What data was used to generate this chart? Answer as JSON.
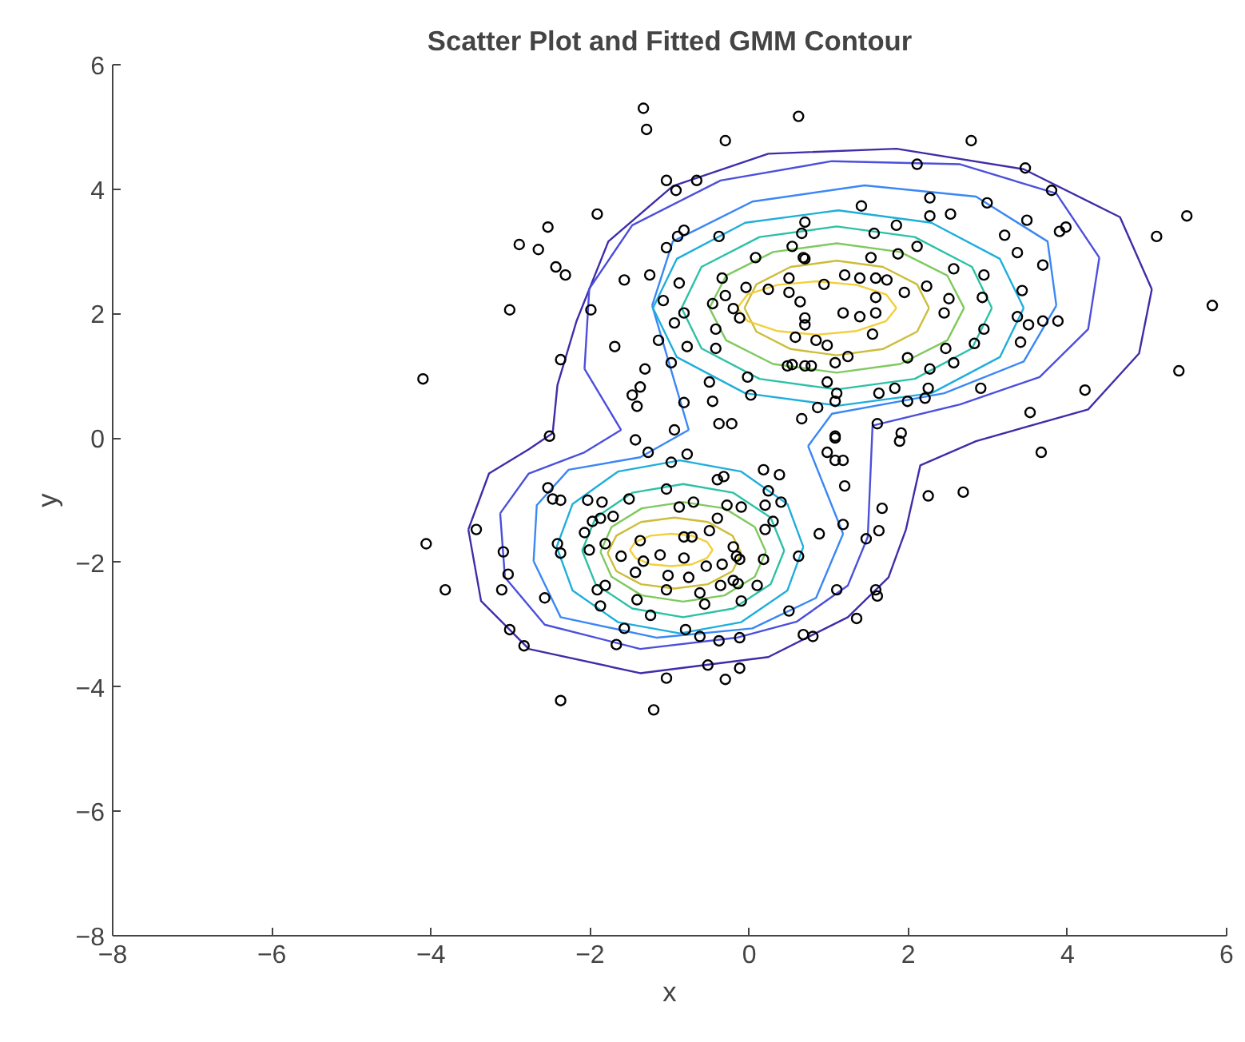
{
  "chart_data": {
    "type": "scatter",
    "title": "Scatter Plot and Fitted GMM Contour",
    "xlabel": "x",
    "ylabel": "y",
    "xlim": [
      -8,
      6
    ],
    "ylim": [
      -8,
      6
    ],
    "xticks": [
      -8,
      -6,
      -4,
      -2,
      0,
      2,
      4,
      6
    ],
    "yticks": [
      -8,
      -6,
      -4,
      -2,
      0,
      2,
      4,
      6
    ],
    "grid": false,
    "series": [
      {
        "type": "line",
        "color": "#3e2da8",
        "x": [
          -2.47,
          -2.41,
          -2.17,
          -1.77,
          -0.96,
          0.24,
          1.85,
          3.45,
          4.66,
          5.06
        ],
        "values": [
          0.08,
          0.85,
          1.88,
          3.16,
          4.05,
          4.57,
          4.65,
          4.32,
          3.55,
          2.39
        ]
      },
      {
        "type": "line",
        "color": "#3e2da8",
        "x": [
          -3.53,
          -3.37,
          -2.77,
          -1.37,
          0.24,
          1.24,
          1.75,
          1.97,
          2.15,
          2.85,
          4.26,
          4.9,
          5.06
        ],
        "values": [
          -1.47,
          -2.62,
          -3.39,
          -3.78,
          -3.52,
          -2.88,
          -2.24,
          -1.47,
          -0.44,
          -0.05,
          0.46,
          1.36,
          2.39
        ]
      },
      {
        "type": "line",
        "color": "#3e2da8",
        "x": [
          -3.53,
          -3.27,
          -2.77,
          -2.47
        ],
        "values": [
          -1.47,
          -0.57,
          -0.18,
          0.08
        ]
      },
      {
        "type": "line",
        "color": "#4b4fdc",
        "x": [
          -2.07,
          -1.61
        ],
        "values": [
          1.11,
          0.13
        ]
      },
      {
        "type": "line",
        "color": "#4b4fdc",
        "x": [
          -2.07,
          -2.01,
          -1.47,
          -0.36,
          1.04,
          2.65,
          3.86,
          4.4
        ],
        "values": [
          1.11,
          2.4,
          3.42,
          4.14,
          4.45,
          4.4,
          3.93,
          2.9
        ]
      },
      {
        "type": "line",
        "color": "#4b4fdc",
        "x": [
          -3.13,
          -3.07,
          -2.57,
          -1.37,
          -0.16,
          0.6,
          1.24,
          1.49,
          1.55,
          2.65,
          3.65,
          4.26,
          4.4
        ],
        "values": [
          -1.21,
          -2.24,
          -3.0,
          -3.39,
          -3.21,
          -2.95,
          -2.37,
          -1.59,
          0.2,
          0.54,
          0.98,
          1.75,
          2.9
        ]
      },
      {
        "type": "line",
        "color": "#4b4fdc",
        "x": [
          -3.13,
          -2.77,
          -2.07,
          -1.61
        ],
        "values": [
          -1.21,
          -0.57,
          -0.23,
          0.13
        ]
      },
      {
        "type": "line",
        "color": "#3a87f5",
        "x": [
          -1.22,
          -0.76
        ],
        "values": [
          2.13,
          0.13
        ]
      },
      {
        "type": "line",
        "color": "#3a87f5",
        "x": [
          -1.22,
          -0.96,
          0.04,
          1.45,
          2.85,
          3.75,
          3.86
        ],
        "values": [
          2.13,
          3.16,
          3.8,
          4.06,
          3.88,
          3.16,
          2.13
        ]
      },
      {
        "type": "line",
        "color": "#3a87f5",
        "x": [
          0.74,
          1.04,
          2.45,
          3.45,
          3.86
        ],
        "values": [
          -0.13,
          0.39,
          0.72,
          1.23,
          2.13
        ]
      },
      {
        "type": "line",
        "color": "#3a87f5",
        "x": [
          0.74,
          1.18
        ],
        "values": [
          -0.13,
          -1.54
        ]
      },
      {
        "type": "line",
        "color": "#3a87f5",
        "x": [
          -2.71,
          -2.37,
          -1.16,
          0.04,
          0.84,
          1.18
        ],
        "values": [
          -1.98,
          -2.88,
          -3.21,
          -3.06,
          -2.57,
          -1.54
        ]
      },
      {
        "type": "line",
        "color": "#3a87f5",
        "x": [
          -2.71,
          -2.67,
          -2.27,
          -1.37,
          -0.76
        ],
        "values": [
          -1.98,
          -1.08,
          -0.51,
          -0.31,
          0.13
        ]
      },
      {
        "type": "line",
        "color": "#1eaedc",
        "x": [
          -1.21,
          -0.91,
          -0.05,
          1.12,
          2.29,
          3.15,
          3.45
        ],
        "values": [
          2.09,
          2.88,
          3.46,
          3.66,
          3.46,
          2.88,
          2.09
        ]
      },
      {
        "type": "line",
        "color": "#1eaedc",
        "x": [
          -1.21,
          -0.91,
          -0.05,
          1.12,
          2.29,
          3.15,
          3.45
        ],
        "values": [
          2.09,
          1.3,
          0.72,
          0.52,
          0.72,
          1.3,
          2.09
        ]
      },
      {
        "type": "line",
        "color": "#2cc0a6",
        "x": [
          -0.85,
          -0.6,
          0.13,
          1.1,
          2.08,
          2.8,
          3.05
        ],
        "values": [
          2.09,
          2.75,
          3.23,
          3.4,
          3.23,
          2.75,
          2.09
        ]
      },
      {
        "type": "line",
        "color": "#2cc0a6",
        "x": [
          -0.85,
          -0.6,
          0.13,
          1.1,
          2.08,
          2.8,
          3.05
        ],
        "values": [
          2.09,
          1.44,
          0.95,
          0.78,
          0.95,
          1.44,
          2.09
        ]
      },
      {
        "type": "line",
        "color": "#7fc95d",
        "x": [
          -0.5,
          -0.29,
          0.3,
          1.1,
          1.9,
          2.49,
          2.7
        ],
        "values": [
          2.09,
          2.61,
          2.99,
          3.13,
          2.99,
          2.61,
          2.09
        ]
      },
      {
        "type": "line",
        "color": "#7fc95d",
        "x": [
          -0.5,
          -0.29,
          0.3,
          1.1,
          1.9,
          2.49,
          2.7
        ],
        "values": [
          2.09,
          1.57,
          1.19,
          1.05,
          1.19,
          1.57,
          2.09
        ]
      },
      {
        "type": "line",
        "color": "#cdbd3a",
        "x": [
          -0.06,
          0.09,
          0.52,
          1.1,
          1.68,
          2.11,
          2.26
        ],
        "values": [
          2.09,
          2.47,
          2.75,
          2.85,
          2.75,
          2.47,
          2.09
        ]
      },
      {
        "type": "line",
        "color": "#cdbd3a",
        "x": [
          -0.06,
          0.09,
          0.52,
          1.1,
          1.68,
          2.11,
          2.26
        ],
        "values": [
          2.09,
          1.71,
          1.43,
          1.33,
          1.43,
          1.71,
          2.09
        ]
      },
      {
        "type": "line",
        "color": "#f2cf3b",
        "x": [
          -0.15,
          -0.02,
          0.35,
          0.85,
          1.35,
          1.72,
          1.85
        ],
        "values": [
          2.09,
          2.31,
          2.46,
          2.52,
          2.46,
          2.31,
          2.09
        ]
      },
      {
        "type": "line",
        "color": "#f2cf3b",
        "x": [
          -0.15,
          -0.02,
          0.35,
          0.85,
          1.35,
          1.72,
          1.85
        ],
        "values": [
          2.09,
          1.88,
          1.72,
          1.66,
          1.72,
          1.88,
          2.09
        ]
      },
      {
        "type": "line",
        "color": "#1eaedc",
        "x": [
          -2.42,
          -2.22,
          -1.65,
          -0.87,
          -0.1,
          0.48,
          0.68
        ],
        "values": [
          -1.75,
          -1.06,
          -0.54,
          -0.36,
          -0.54,
          -1.06,
          -1.75
        ]
      },
      {
        "type": "line",
        "color": "#1eaedc",
        "x": [
          -2.42,
          -2.22,
          -1.65,
          -0.87,
          -0.1,
          0.48,
          0.68
        ],
        "values": [
          -1.75,
          -2.45,
          -2.96,
          -3.14,
          -2.96,
          -2.45,
          -1.75
        ]
      },
      {
        "type": "line",
        "color": "#2cc0a6",
        "x": [
          -2.1,
          -1.93,
          -1.47,
          -0.83,
          -0.2,
          0.27,
          0.44
        ],
        "values": [
          -1.81,
          -1.28,
          -0.88,
          -0.74,
          -0.88,
          -1.28,
          -1.81
        ]
      },
      {
        "type": "line",
        "color": "#2cc0a6",
        "x": [
          -2.1,
          -1.93,
          -1.47,
          -0.83,
          -0.2,
          0.27,
          0.44
        ],
        "values": [
          -1.81,
          -2.35,
          -2.74,
          -2.88,
          -2.74,
          -2.35,
          -1.81
        ]
      },
      {
        "type": "line",
        "color": "#7fc95d",
        "x": [
          -1.87,
          -1.73,
          -1.35,
          -0.83,
          -0.31,
          0.07,
          0.21
        ],
        "values": [
          -1.83,
          -1.43,
          -1.13,
          -1.03,
          -1.13,
          -1.43,
          -1.83
        ]
      },
      {
        "type": "line",
        "color": "#7fc95d",
        "x": [
          -1.87,
          -1.73,
          -1.35,
          -0.83,
          -0.31,
          0.07,
          0.21
        ],
        "values": [
          -1.83,
          -2.23,
          -2.53,
          -2.63,
          -2.53,
          -2.23,
          -1.83
        ]
      },
      {
        "type": "line",
        "color": "#cdbd3a",
        "x": [
          -1.78,
          -1.67,
          -1.36,
          -0.94,
          -0.52,
          -0.21,
          -0.1
        ],
        "values": [
          -1.85,
          -1.57,
          -1.35,
          -1.28,
          -1.35,
          -1.57,
          -1.85
        ]
      },
      {
        "type": "line",
        "color": "#cdbd3a",
        "x": [
          -1.78,
          -1.67,
          -1.36,
          -0.94,
          -0.52,
          -0.21,
          -0.1
        ],
        "values": [
          -1.85,
          -2.14,
          -2.35,
          -2.42,
          -2.35,
          -2.14,
          -1.85
        ]
      },
      {
        "type": "line",
        "color": "#f2cf3b",
        "x": [
          -1.5,
          -1.43,
          -1.24,
          -0.98,
          -0.72,
          -0.53,
          -0.46
        ],
        "values": [
          -1.8,
          -1.67,
          -1.57,
          -1.54,
          -1.57,
          -1.67,
          -1.8
        ]
      },
      {
        "type": "line",
        "color": "#f2cf3b",
        "x": [
          -1.5,
          -1.43,
          -1.24,
          -0.98,
          -0.72,
          -0.53,
          -0.46
        ],
        "values": [
          -1.8,
          -1.93,
          -2.03,
          -2.06,
          -2.03,
          -1.93,
          -1.8
        ]
      },
      {
        "color": "#000000",
        "marker": "circle",
        "x": [
          -1.33,
          -1.29,
          -0.3,
          -1.04,
          -0.92,
          -0.66,
          -1.91,
          -2.53,
          -2.89,
          -2.65,
          -2.43,
          -2.31,
          -3.01,
          -1.99,
          -1.57,
          -1.25,
          -0.88,
          -1.08,
          -0.94,
          -0.82,
          -1.69,
          -2.37,
          -4.1,
          -1.14,
          -0.98,
          -0.78,
          -1.31,
          -1.37,
          -1.47,
          -1.41,
          -0.82,
          -0.94,
          -1.43,
          -2.51,
          -1.04,
          -0.9,
          -0.82,
          -0.38,
          -0.34,
          -0.46,
          -0.3,
          -0.2,
          -0.12,
          -0.42,
          -0.42,
          0.08,
          -0.04,
          0.24,
          0.54,
          0.66,
          0.68,
          0.5,
          0.64,
          0.7,
          0.58,
          0.48,
          0.7,
          -0.02,
          0.02,
          -0.5,
          -0.46,
          -0.38,
          -0.22,
          0.66,
          0.62,
          2.79,
          2.11,
          3.47,
          3.8,
          5.5,
          5.12,
          5.82,
          5.4,
          4.22,
          3.53,
          3.67,
          1.41,
          2.27,
          2.27,
          2.53,
          2.99,
          3.49,
          3.98,
          3.9,
          3.21,
          3.37,
          3.69,
          3.43,
          3.37,
          3.51,
          3.69,
          3.88,
          3.41,
          2.95,
          2.93,
          2.83,
          2.95,
          2.91,
          2.57,
          2.51,
          2.45,
          2.47,
          2.57,
          2.27,
          2.25,
          2.11,
          1.87,
          1.85,
          1.57,
          1.53,
          2.23,
          1.95,
          1.73,
          1.59,
          1.39,
          1.2,
          0.94,
          1.59,
          1.59,
          1.39,
          1.18,
          1.55,
          1.99,
          1.24,
          1.08,
          0.98,
          1.1,
          1.08,
          1.63,
          1.83,
          1.99,
          2.21,
          0.86,
          1.61,
          1.91,
          1.08,
          0.98,
          0.7,
          0.7,
          0.5,
          0.7,
          0.84,
          0.98,
          0.54,
          0.78,
          -1.27,
          -0.78,
          -0.98,
          -2.53,
          -2.47,
          -2.37,
          -2.03,
          -1.85,
          -1.71,
          -1.51,
          -1.04,
          -0.88,
          -0.7,
          -0.4,
          -0.32,
          0.18,
          0.38,
          0.24,
          0.2,
          0.4,
          0.3,
          -0.28,
          -0.1,
          -0.4,
          -0.5,
          0.2,
          -1.97,
          -2.07,
          -1.87,
          -1.81,
          -2.01,
          -2.41,
          -2.37,
          -3.09,
          -3.43,
          -4.06,
          -3.82,
          -3.03,
          -3.11,
          -2.57,
          -3.01,
          -2.83,
          -2.37,
          -1.2,
          -1.61,
          -1.37,
          -1.12,
          -1.33,
          -1.43,
          -0.82,
          -0.72,
          -0.82,
          -1.02,
          -0.76,
          -0.54,
          -0.34,
          -0.2,
          -0.16,
          -0.12,
          0.18,
          -0.2,
          -0.36,
          -0.14,
          0.1,
          0.62,
          -1.04,
          -1.81,
          -1.91,
          -1.87,
          -1.41,
          -0.62,
          -0.56,
          -0.1,
          -1.24,
          -1.57,
          -1.67,
          -0.8,
          -0.62,
          -0.38,
          -0.12,
          0.5,
          0.68,
          0.8,
          -0.52,
          -0.12,
          -1.04,
          -0.3,
          1.08,
          1.89,
          1.08,
          1.18,
          1.2,
          2.25,
          2.69,
          1.67,
          1.18,
          1.63,
          1.47,
          0.88,
          1.1,
          1.59,
          1.61,
          1.35
        ],
        "values": [
          5.3,
          4.96,
          4.78,
          4.14,
          3.98,
          4.14,
          3.6,
          3.39,
          3.11,
          3.03,
          2.75,
          2.62,
          2.06,
          2.06,
          2.54,
          2.62,
          2.49,
          2.21,
          1.85,
          2.01,
          1.47,
          1.26,
          0.95,
          1.57,
          1.21,
          1.47,
          1.11,
          0.82,
          0.69,
          0.51,
          0.57,
          0.13,
          -0.03,
          0.03,
          3.06,
          3.24,
          3.34,
          3.24,
          2.57,
          2.16,
          2.29,
          2.08,
          1.93,
          1.75,
          1.44,
          2.9,
          2.42,
          2.39,
          3.08,
          3.29,
          2.9,
          2.57,
          2.19,
          1.93,
          1.62,
          1.16,
          1.16,
          0.98,
          0.69,
          0.9,
          0.59,
          0.23,
          0.23,
          0.31,
          5.17,
          4.78,
          4.4,
          4.34,
          3.98,
          3.57,
          3.24,
          2.13,
          1.08,
          0.77,
          0.41,
          -0.23,
          3.73,
          3.86,
          3.57,
          3.6,
          3.78,
          3.5,
          3.39,
          3.32,
          3.26,
          2.98,
          2.78,
          2.37,
          1.95,
          1.82,
          1.88,
          1.88,
          1.54,
          2.62,
          2.26,
          1.52,
          1.75,
          0.8,
          2.72,
          2.24,
          2.01,
          1.44,
          1.21,
          1.11,
          0.8,
          3.08,
          2.96,
          3.42,
          3.29,
          2.9,
          2.44,
          2.34,
          2.54,
          2.57,
          2.57,
          2.62,
          2.47,
          2.26,
          2.01,
          1.95,
          2.01,
          1.67,
          1.29,
          1.31,
          1.21,
          0.9,
          0.72,
          0.59,
          0.72,
          0.8,
          0.59,
          0.64,
          0.49,
          0.23,
          0.08,
          0.03,
          -0.23,
          3.47,
          2.88,
          2.34,
          1.82,
          1.57,
          1.49,
          1.18,
          1.16,
          -0.23,
          -0.26,
          -0.39,
          -0.8,
          -0.98,
          -1.0,
          -1.0,
          -1.03,
          -1.26,
          -0.98,
          -0.82,
          -1.11,
          -1.03,
          -0.67,
          -0.62,
          -0.51,
          -0.59,
          -0.85,
          -1.08,
          -1.03,
          -1.34,
          -1.08,
          -1.11,
          -1.29,
          -1.49,
          -1.47,
          -1.34,
          -1.52,
          -1.29,
          -1.7,
          -1.8,
          -1.7,
          -1.85,
          -1.83,
          -1.47,
          -1.7,
          -2.44,
          -2.19,
          -2.44,
          -2.57,
          -3.08,
          -3.34,
          -4.22,
          -4.37,
          -1.9,
          -1.65,
          -1.88,
          -1.98,
          -2.16,
          -1.59,
          -1.59,
          -1.93,
          -2.21,
          -2.24,
          -2.06,
          -2.03,
          -1.75,
          -1.9,
          -1.95,
          -1.95,
          -2.29,
          -2.37,
          -2.34,
          -2.37,
          -1.9,
          -2.44,
          -2.37,
          -2.44,
          -2.7,
          -2.6,
          -2.49,
          -2.67,
          -2.62,
          -2.85,
          -3.06,
          -3.32,
          -3.08,
          -3.19,
          -3.26,
          -3.21,
          -2.78,
          -3.16,
          -3.19,
          -3.65,
          -3.7,
          -3.86,
          -3.88,
          0.0,
          -0.05,
          -0.36,
          -0.36,
          -0.77,
          -0.93,
          -0.87,
          -1.13,
          -1.39,
          -1.49,
          -1.62,
          -1.54,
          -2.44,
          -2.44,
          -2.54,
          -2.9
        ]
      }
    ]
  }
}
